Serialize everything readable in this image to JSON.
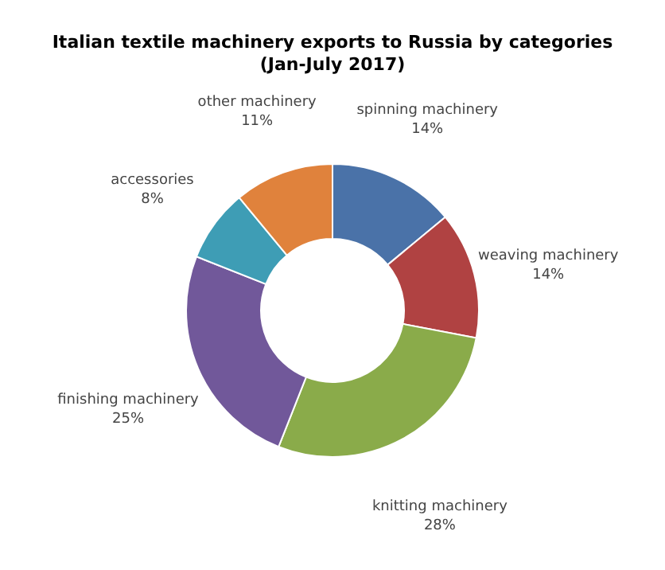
{
  "chart_data": {
    "type": "donut",
    "title": "Italian textile machinery exports to Russia by categories",
    "subtitle": "(Jan-July 2017)",
    "categories": [
      "spinning machinery",
      "weaving machinery",
      "knitting machinery",
      "finishing machinery",
      "accessories",
      "other machinery"
    ],
    "values": [
      14,
      14,
      28,
      25,
      8,
      11
    ],
    "value_labels": [
      "14%",
      "14%",
      "28%",
      "25%",
      "8%",
      "11%"
    ],
    "colors": [
      "#4a72a8",
      "#b04242",
      "#8aab4a",
      "#71589a",
      "#3e9db5",
      "#e0823c"
    ],
    "legend": false
  }
}
